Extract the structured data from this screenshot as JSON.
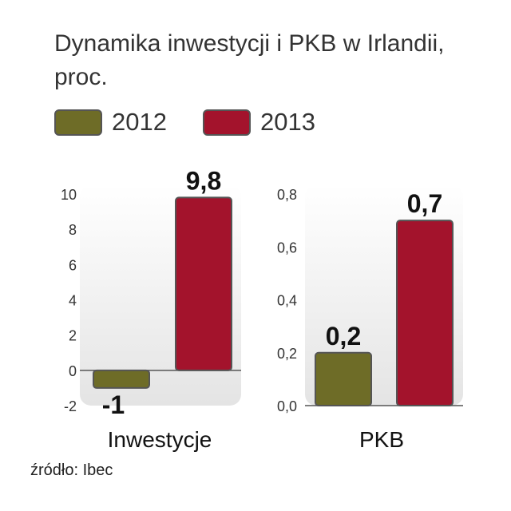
{
  "title": "Dynamika inwestycji i PKB w Irlandii, proc.",
  "source": "źródło: Ibec",
  "legend": [
    {
      "label": "2012",
      "color": "#6e6c27"
    },
    {
      "label": "2013",
      "color": "#a3132c"
    }
  ],
  "chart_data": [
    {
      "type": "bar",
      "title": "Dynamika inwestycji i PKB w Irlandii, proc.",
      "category": "Inwestycje",
      "series": [
        {
          "name": "2012",
          "value": -1,
          "label": "-1"
        },
        {
          "name": "2013",
          "value": 9.8,
          "label": "9,8"
        }
      ],
      "ylim": [
        -2,
        10
      ],
      "yticks": [
        "10",
        "8",
        "6",
        "4",
        "2",
        "0",
        "-2"
      ],
      "ytick_values": [
        10,
        8,
        6,
        4,
        2,
        0,
        -2
      ]
    },
    {
      "type": "bar",
      "category": "PKB",
      "series": [
        {
          "name": "2012",
          "value": 0.2,
          "label": "0,2"
        },
        {
          "name": "2013",
          "value": 0.7,
          "label": "0,7"
        }
      ],
      "ylim": [
        0,
        0.8
      ],
      "yticks": [
        "0,8",
        "0,6",
        "0,4",
        "0,2",
        "0,0"
      ],
      "ytick_values": [
        0.8,
        0.6,
        0.4,
        0.2,
        0.0
      ]
    }
  ]
}
